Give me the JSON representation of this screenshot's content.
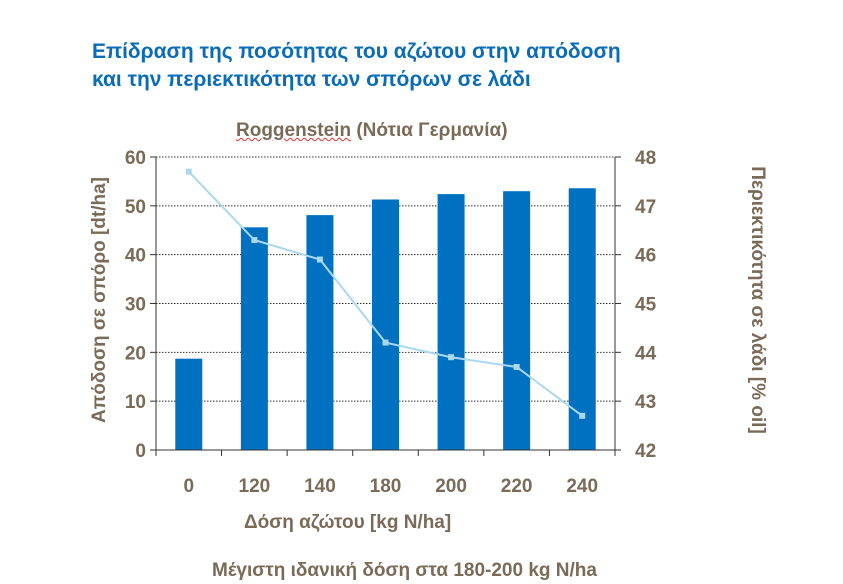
{
  "chart_data": {
    "type": "bar+line",
    "title": "Επίδραση της ποσότητας του αζώτου στην απόδοση και την περιεκτικότητα των σπόρων σε λάδι",
    "title_lines": [
      "Επίδραση της ποσότητας του αζώτου στην απόδοση",
      "και την περιεκτικότητα των σπόρων σε λάδι"
    ],
    "subtitle_place": "Roggenstein",
    "subtitle_rest": " (Νότια Γερμανία)",
    "xlabel": "Δόση αζώτου [kg N/ha]",
    "ylabel": "Απόδοση σε σπόρο [dt/ha]",
    "y2label": "Περιεκτικότητα σε λάδι [% oil]",
    "footnote": "Μέγιστη ιδανική δόση στα 180-200 kg N/ha",
    "categories": [
      "0",
      "120",
      "140",
      "180",
      "200",
      "220",
      "240"
    ],
    "ylim": [
      0,
      60
    ],
    "yticks": [
      "0",
      "10",
      "20",
      "30",
      "40",
      "50",
      "60"
    ],
    "y2lim": [
      42,
      48
    ],
    "y2ticks": [
      "42",
      "43",
      "44",
      "45",
      "46",
      "47",
      "48"
    ],
    "grid": true,
    "series": [
      {
        "name": "Απόδοση",
        "type": "bar",
        "axis": "left",
        "color": "#0070c0",
        "values": [
          18.7,
          45.6,
          48.1,
          51.3,
          52.4,
          53.0,
          53.6
        ]
      },
      {
        "name": "Λάδι",
        "type": "line",
        "axis": "right",
        "color": "#a9d8f0",
        "values": [
          47.7,
          46.3,
          45.9,
          44.2,
          43.9,
          43.7,
          42.7
        ]
      }
    ]
  }
}
